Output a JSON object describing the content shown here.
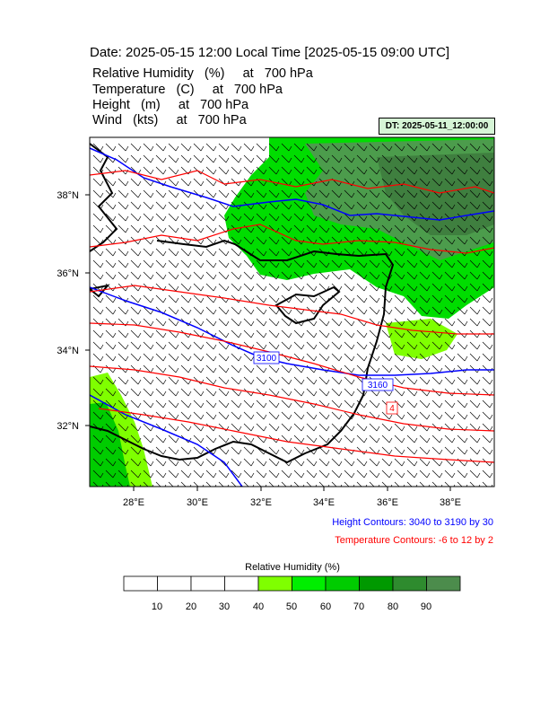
{
  "header": {
    "title": "Date: 2025-05-15  12:00 Local Time [2025-05-15  09:00 UTC]",
    "fields": [
      "Relative Humidity   (%)     at   700 hPa",
      "Temperature   (C)     at   700 hPa",
      "Height   (m)     at   700 hPa",
      "Wind   (kts)     at   700 hPa"
    ],
    "dt_label": "DT: 2025-05-11_12:00:00"
  },
  "map": {
    "lat_labels": [
      "38°N",
      "36°N",
      "34°N",
      "32°N"
    ],
    "lon_labels": [
      "28°E",
      "30°E",
      "32°E",
      "34°E",
      "36°E",
      "38°E"
    ],
    "height_contour_labels": [
      "3100",
      "3160"
    ],
    "temperature_contour_label": "4",
    "colors": {
      "height_contour": "#0000ff",
      "temperature_contour": "#ff0000",
      "coastline": "#000000",
      "wind_barb": "#000000"
    }
  },
  "notes": {
    "height": "Height Contours: 3040 to 3190 by 30",
    "temperature": "Temperature Contours: -6 to 12 by 2"
  },
  "colorbar": {
    "title": "Relative Humidity  (%)",
    "labels": [
      "10",
      "20",
      "30",
      "40",
      "50",
      "60",
      "70",
      "80",
      "90"
    ],
    "colors": [
      "#ffffff",
      "#ffffff",
      "#ffffff",
      "#ffffff",
      "#7fff00",
      "#00ee00",
      "#00cc00",
      "#009900",
      "#2e8b2e",
      "#4c8c4c"
    ]
  }
}
